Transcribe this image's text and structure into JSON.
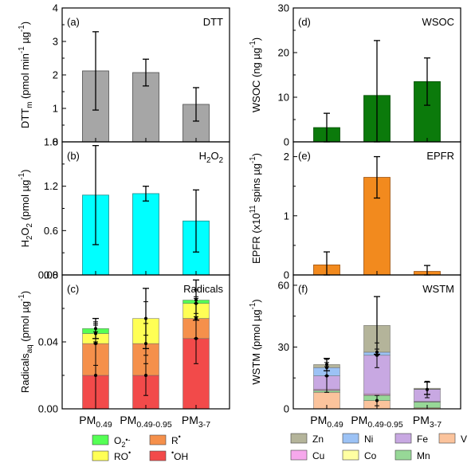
{
  "categories": [
    "PM0.49",
    "PM0.49-0.95",
    "PM3-7"
  ],
  "chart_data": [
    {
      "id": "a",
      "type": "bar",
      "panel_label": "(a)",
      "title": "DTT",
      "ylabel": "DTTm (pmol min-1 µg-1)",
      "ylim": [
        0,
        4
      ],
      "yticks": [
        "0",
        "1",
        "2",
        "3",
        "4"
      ],
      "categories": [
        "PM0.49",
        "PM0.49-0.95",
        "PM3-7"
      ],
      "values": [
        2.12,
        2.07,
        1.12
      ],
      "errors": [
        1.17,
        0.4,
        0.5
      ],
      "color": "#a6a6a6",
      "edge": "#4d4d4d"
    },
    {
      "id": "b",
      "type": "bar",
      "panel_label": "(b)",
      "title": "H2O2",
      "ylabel": "H2O2 (pmol µg-1)",
      "ylim": [
        0,
        1.8
      ],
      "yticks": [
        "0.0",
        "0.6",
        "1.2",
        "1.8"
      ],
      "categories": [
        "PM0.49",
        "PM0.49-0.95",
        "PM3-7"
      ],
      "values": [
        1.08,
        1.1,
        0.73
      ],
      "errors": [
        0.67,
        0.1,
        0.42
      ],
      "color": "#00ffff",
      "edge": "#1a8a8a"
    },
    {
      "id": "c",
      "type": "stacked-bar",
      "panel_label": "(c)",
      "title": "Radicals",
      "ylabel": "Radicalsaq (pmol µg-1)",
      "ylim": [
        0,
        0.08
      ],
      "yticks": [
        "0.00",
        "0.04",
        "0.08"
      ],
      "categories": [
        "PM0.49",
        "PM0.49-0.95",
        "PM3-7"
      ],
      "series": [
        {
          "name": "•OH",
          "color": "#f24a4a",
          "values": [
            0.02,
            0.02,
            0.042
          ],
          "errors": [
            0.02,
            0.012,
            0.015
          ]
        },
        {
          "name": "R•",
          "color": "#f5904b",
          "values": [
            0.019,
            0.019,
            0.012
          ],
          "errors": [
            0.013,
            0.012,
            0.012
          ]
        },
        {
          "name": "RO•",
          "color": "#ffff55",
          "values": [
            0.006,
            0.015,
            0.009
          ],
          "errors": [
            0.006,
            0.01,
            0.008
          ]
        },
        {
          "name": "O2•-",
          "color": "#55ff55",
          "values": [
            0.003,
            0.0,
            0.002
          ],
          "errors": [
            0.002,
            0.0,
            0.002
          ]
        }
      ],
      "total_errors": [
        0.006,
        0.018,
        0.012
      ]
    },
    {
      "id": "d",
      "type": "bar",
      "panel_label": "(d)",
      "title": "WSOC",
      "ylabel": "WSOC (ng µg-1)",
      "ylim": [
        0,
        30
      ],
      "yticks": [
        "0",
        "10",
        "20",
        "30"
      ],
      "categories": [
        "PM0.49",
        "PM0.49-0.95",
        "PM3-7"
      ],
      "values": [
        3.2,
        10.4,
        13.5
      ],
      "errors": [
        3.2,
        12.3,
        5.3
      ],
      "color": "#0b7a0b",
      "edge": "#064d06"
    },
    {
      "id": "e",
      "type": "bar",
      "panel_label": "(e)",
      "title": "EPFR",
      "ylabel": "EPFR (x1011 spins µg-1)",
      "ylim": [
        0,
        2.25
      ],
      "yticks": [
        "0",
        "1",
        "2"
      ],
      "categories": [
        "PM0.49",
        "PM0.49-0.95",
        "PM3-7"
      ],
      "values": [
        0.17,
        1.65,
        0.06
      ],
      "errors": [
        0.22,
        0.35,
        0.1
      ],
      "color": "#f28a1e",
      "edge": "#9c5210"
    },
    {
      "id": "f",
      "type": "stacked-bar",
      "panel_label": "(f)",
      "title": "WSTM",
      "ylabel": "WSTM (pmol µg-1)",
      "ylim": [
        0,
        65
      ],
      "yticks": [
        "0",
        "30",
        "60"
      ],
      "categories": [
        "PM0.49",
        "PM0.49-0.95",
        "PM3-7"
      ],
      "series": [
        {
          "name": "V",
          "color": "#fbc39c",
          "values": [
            8.0,
            4.0,
            0.5
          ],
          "errors": [
            0,
            2.5,
            0
          ]
        },
        {
          "name": "Mn",
          "color": "#97d897",
          "values": [
            0.8,
            2.5,
            2.8
          ],
          "errors": [
            0,
            0,
            0
          ]
        },
        {
          "name": "Co",
          "color": "#ffffa2",
          "values": [
            0.2,
            0.2,
            0.1
          ],
          "errors": [
            0,
            0,
            0
          ]
        },
        {
          "name": "Cu",
          "color": "#f6a8ec",
          "values": [
            0.5,
            0.6,
            0.2
          ],
          "errors": [
            0,
            0,
            0
          ]
        },
        {
          "name": "Fe",
          "color": "#c8a8e2",
          "values": [
            6.5,
            18.7,
            5.8
          ],
          "errors": [
            8,
            6,
            4
          ]
        },
        {
          "name": "Ni",
          "color": "#9cc2f5",
          "values": [
            4.0,
            1.5,
            0.2
          ],
          "errors": [
            4,
            1.5,
            0
          ]
        },
        {
          "name": "Zn",
          "color": "#b4b49a",
          "values": [
            1.5,
            13.0,
            0.4
          ],
          "errors": [
            1,
            0,
            0
          ]
        }
      ],
      "total_errors": [
        3,
        14,
        3
      ]
    }
  ],
  "legend_left": [
    {
      "name": "O2•-",
      "color": "#55ff55"
    },
    {
      "name": "R•",
      "color": "#f5904b"
    },
    {
      "name": "RO•",
      "color": "#ffff55"
    },
    {
      "name": "•OH",
      "color": "#f24a4a"
    }
  ],
  "legend_right": [
    {
      "name": "Zn",
      "color": "#b4b49a"
    },
    {
      "name": "Ni",
      "color": "#9cc2f5"
    },
    {
      "name": "Fe",
      "color": "#c8a8e2"
    },
    {
      "name": "V",
      "color": "#fbc39c"
    },
    {
      "name": "Cu",
      "color": "#f6a8ec"
    },
    {
      "name": "Co",
      "color": "#ffffa2"
    },
    {
      "name": "Mn",
      "color": "#97d897"
    }
  ]
}
